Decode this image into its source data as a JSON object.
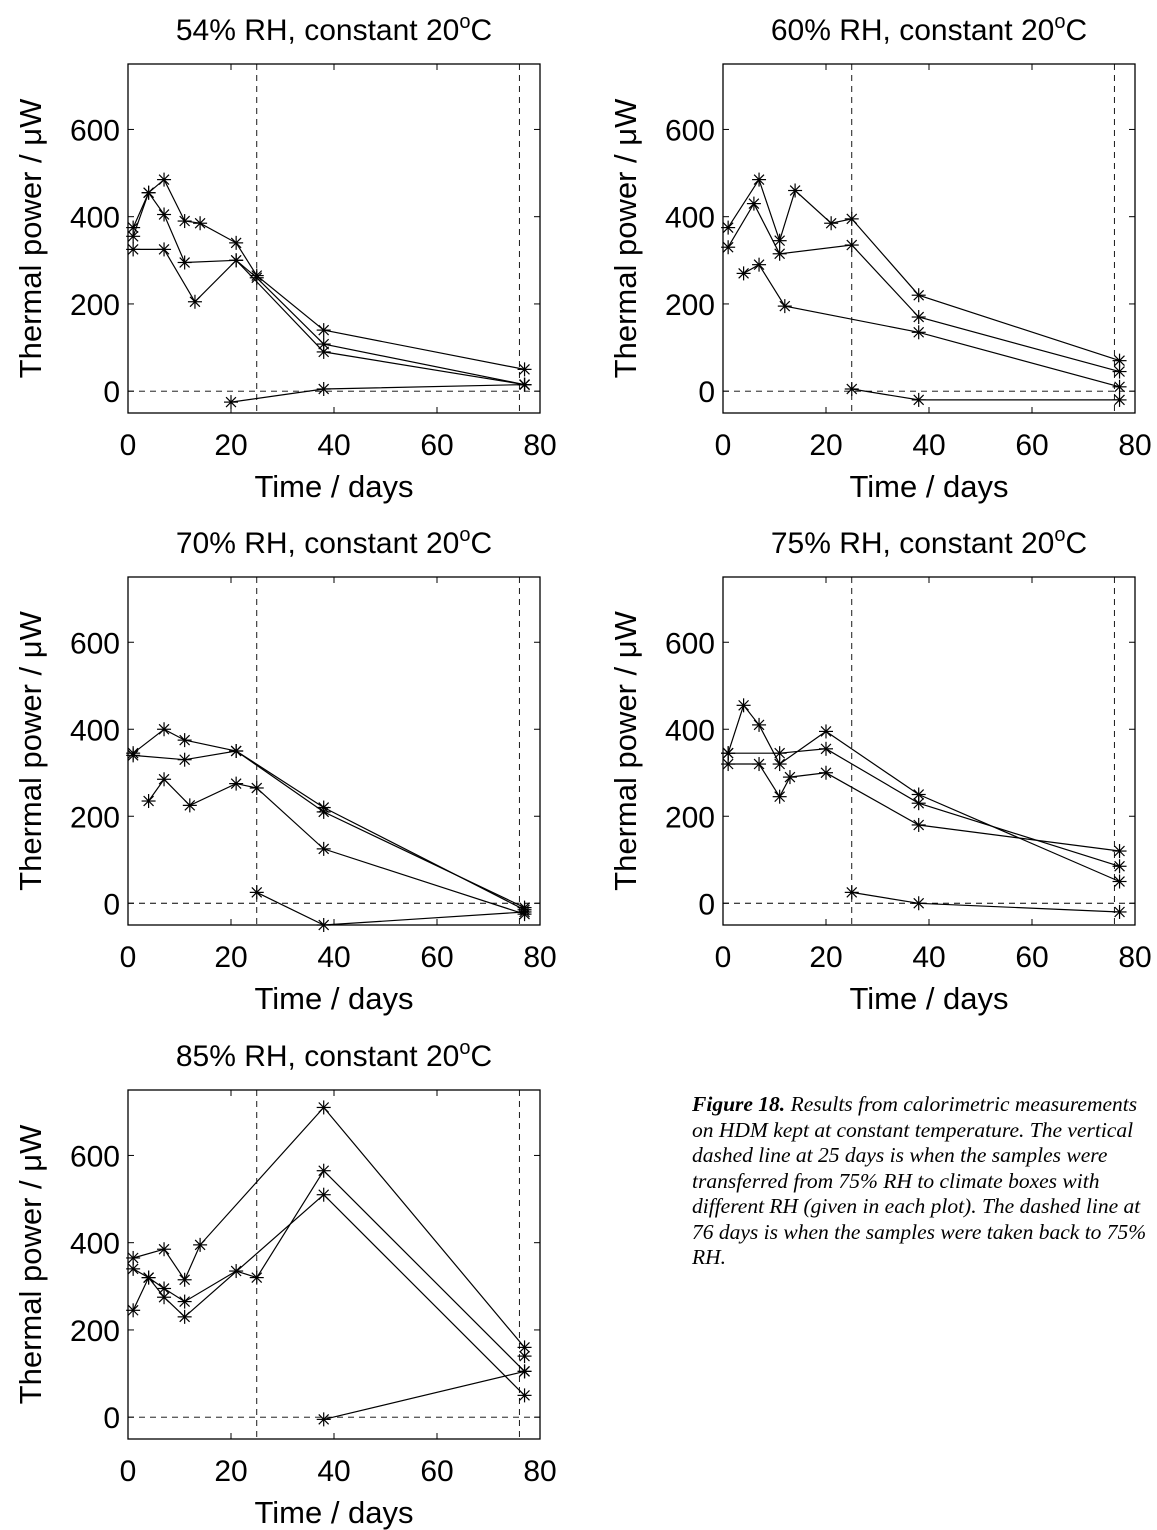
{
  "caption": {
    "label": "Figure 18.",
    "text": "Results from calorimetric measurements on HDM kept at constant temperature. The vertical dashed line at 25 days is when the samples were transferred from 75% RH to climate boxes with different RH (given in each plot). The dashed line at 76 days is when the samples were taken back to 75% RH."
  },
  "chart_data": [
    {
      "type": "line",
      "title": "54% RH, constant 20oC",
      "title_parts": {
        "text": "54% RH, constant 20",
        "sup": "o",
        "unit": "C"
      },
      "xlabel": "Time / days",
      "ylabel": "Thermal power / μW",
      "xlim": [
        0,
        80
      ],
      "ylim": [
        -50,
        750
      ],
      "xticks": [
        0,
        20,
        40,
        60,
        80
      ],
      "yticks": [
        0,
        200,
        400,
        600
      ],
      "vlines": [
        25,
        76
      ],
      "hline": 0,
      "marker": "asterisk",
      "series": [
        {
          "x": [
            1,
            4,
            7,
            11,
            14,
            21,
            25,
            38,
            77
          ],
          "y": [
            375,
            455,
            485,
            390,
            385,
            340,
            265,
            140,
            50
          ]
        },
        {
          "x": [
            1,
            4,
            7,
            11,
            21,
            25,
            38,
            77
          ],
          "y": [
            355,
            455,
            405,
            295,
            300,
            260,
            108,
            15
          ]
        },
        {
          "x": [
            1,
            7,
            13,
            21,
            38,
            77
          ],
          "y": [
            325,
            325,
            205,
            300,
            90,
            15
          ]
        },
        {
          "x": [
            20,
            38,
            77
          ],
          "y": [
            -25,
            5,
            15
          ]
        }
      ]
    },
    {
      "type": "line",
      "title": "60% RH, constant 20oC",
      "title_parts": {
        "text": "60% RH, constant 20",
        "sup": "o",
        "unit": "C"
      },
      "xlabel": "Time / days",
      "ylabel": "Thermal power / μW",
      "xlim": [
        0,
        80
      ],
      "ylim": [
        -50,
        750
      ],
      "xticks": [
        0,
        20,
        40,
        60,
        80
      ],
      "yticks": [
        0,
        200,
        400,
        600
      ],
      "vlines": [
        25,
        76
      ],
      "hline": 0,
      "marker": "asterisk",
      "series": [
        {
          "x": [
            1,
            7,
            11,
            14,
            21,
            25,
            38,
            77
          ],
          "y": [
            375,
            485,
            345,
            460,
            385,
            395,
            220,
            70
          ]
        },
        {
          "x": [
            1,
            6,
            11,
            25,
            38,
            77
          ],
          "y": [
            330,
            430,
            315,
            335,
            170,
            45
          ]
        },
        {
          "x": [
            4,
            7,
            12,
            38,
            77
          ],
          "y": [
            270,
            290,
            195,
            135,
            10
          ]
        },
        {
          "x": [
            25,
            38,
            77
          ],
          "y": [
            5,
            -20,
            -20
          ]
        }
      ]
    },
    {
      "type": "line",
      "title": "70% RH, constant 20oC",
      "title_parts": {
        "text": "70% RH, constant 20",
        "sup": "o",
        "unit": "C"
      },
      "xlabel": "Time / days",
      "ylabel": "Thermal power / μW",
      "xlim": [
        0,
        80
      ],
      "ylim": [
        -50,
        750
      ],
      "xticks": [
        0,
        20,
        40,
        60,
        80
      ],
      "yticks": [
        0,
        200,
        400,
        600
      ],
      "vlines": [
        25,
        76
      ],
      "hline": 0,
      "marker": "asterisk",
      "series": [
        {
          "x": [
            1,
            7,
            11,
            21,
            38,
            77
          ],
          "y": [
            345,
            400,
            375,
            350,
            210,
            -10
          ]
        },
        {
          "x": [
            1,
            11,
            21,
            38,
            77
          ],
          "y": [
            340,
            330,
            350,
            220,
            -15
          ]
        },
        {
          "x": [
            4,
            7,
            12,
            21,
            25,
            38,
            77
          ],
          "y": [
            235,
            285,
            225,
            275,
            265,
            125,
            -25
          ]
        },
        {
          "x": [
            25,
            38,
            77
          ],
          "y": [
            25,
            -50,
            -20
          ]
        }
      ]
    },
    {
      "type": "line",
      "title": "75% RH, constant 20oC",
      "title_parts": {
        "text": "75% RH, constant 20",
        "sup": "o",
        "unit": "C"
      },
      "xlabel": "Time / days",
      "ylabel": "Thermal power / μW",
      "xlim": [
        0,
        80
      ],
      "ylim": [
        -50,
        750
      ],
      "xticks": [
        0,
        20,
        40,
        60,
        80
      ],
      "yticks": [
        0,
        200,
        400,
        600
      ],
      "vlines": [
        25,
        76
      ],
      "hline": 0,
      "marker": "asterisk",
      "series": [
        {
          "x": [
            1,
            4,
            7,
            11,
            20,
            38,
            77
          ],
          "y": [
            345,
            455,
            410,
            320,
            395,
            250,
            50
          ]
        },
        {
          "x": [
            1,
            11,
            20,
            38,
            77
          ],
          "y": [
            345,
            345,
            355,
            230,
            85
          ]
        },
        {
          "x": [
            1,
            7,
            11,
            13,
            20,
            38,
            77
          ],
          "y": [
            320,
            320,
            245,
            290,
            300,
            180,
            120
          ]
        },
        {
          "x": [
            25,
            38,
            77
          ],
          "y": [
            25,
            0,
            -20
          ]
        }
      ]
    },
    {
      "type": "line",
      "title": "85% RH, constant 20oC",
      "title_parts": {
        "text": "85% RH, constant 20",
        "sup": "o",
        "unit": "C"
      },
      "xlabel": "Time / days",
      "ylabel": "Thermal power / μW",
      "xlim": [
        0,
        80
      ],
      "ylim": [
        -50,
        750
      ],
      "xticks": [
        0,
        20,
        40,
        60,
        80
      ],
      "yticks": [
        0,
        200,
        400,
        600
      ],
      "vlines": [
        25,
        76
      ],
      "hline": 0,
      "marker": "asterisk",
      "series": [
        {
          "x": [
            1,
            7,
            11,
            14,
            38,
            77
          ],
          "y": [
            365,
            385,
            315,
            395,
            710,
            160
          ]
        },
        {
          "x": [
            1,
            4,
            7,
            11,
            21,
            25,
            38,
            77
          ],
          "y": [
            340,
            320,
            295,
            265,
            335,
            320,
            565,
            105
          ]
        },
        {
          "x": [
            1,
            4,
            7,
            11,
            38,
            77
          ],
          "y": [
            245,
            320,
            275,
            230,
            510,
            50
          ]
        },
        {
          "x": [
            38,
            77
          ],
          "y": [
            -5,
            105
          ]
        },
        {
          "x": [
            77
          ],
          "y": [
            140
          ]
        }
      ]
    }
  ]
}
